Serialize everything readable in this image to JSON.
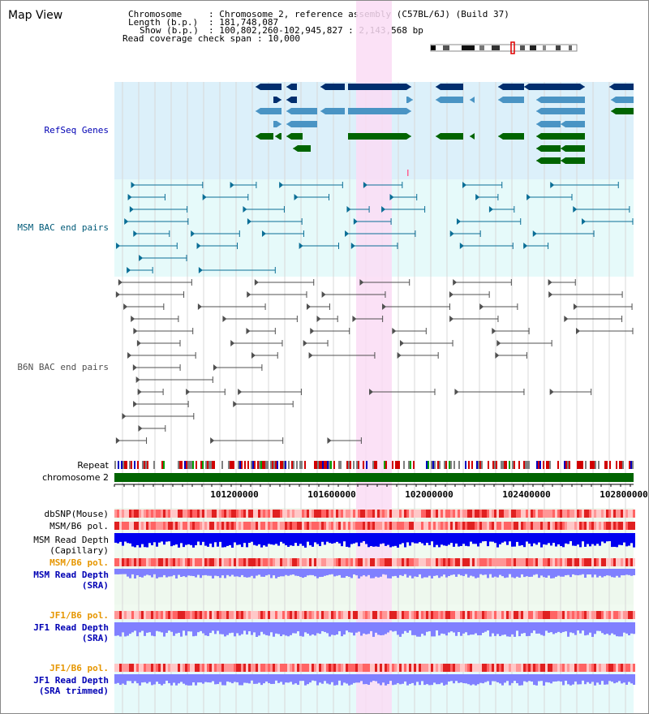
{
  "page": {
    "title": "Map View"
  },
  "info": {
    "chromosome_key": "Chromosome",
    "chromosome_val": ": Chromosome 2, reference assembly (C57BL/6J) (Build 37)",
    "length_key": "Length (b.p.)",
    "length_val": ": 181,748,087",
    "show_key": "Show (b.p.)",
    "show_val": ": 100,802,260-102,945,827 : 2,143,568 bp",
    "span_key": "Read coverage check span",
    "span_val": ": 10,000"
  },
  "tracks": {
    "refseq": "RefSeq Genes",
    "msm_bac": "MSM BAC end pairs",
    "b6n_bac": "B6N BAC end pairs",
    "repeat": "Repeat",
    "chromosome": "chromosome 2",
    "dbsnp": "dbSNP(Mouse)",
    "msm_b6_pol": "MSM/B6 pol.",
    "msm_depth_cap_1": "MSM Read Depth",
    "msm_depth_cap_2": "(Capillary)",
    "msm_b6_pol2": "MSM/B6 pol.",
    "msm_depth_sra_1": "MSM Read Depth",
    "msm_depth_sra_2": "(SRA)",
    "jf1_b6_pol": "JF1/B6 pol.",
    "jf1_depth_1": "JF1 Read Depth",
    "jf1_depth_2": "(SRA)",
    "jf1_b6_pol2": "JF1/B6 pol.",
    "jf1_trim_1": "JF1 Read Depth",
    "jf1_trim_2": "(SRA trimmed)"
  },
  "axis": {
    "ticks": [
      "101200000",
      "101600000",
      "102000000",
      "102400000",
      "102800000"
    ]
  },
  "colors": {
    "refseq_bg": "#dcf0fa",
    "msm_bg": "#e6fafa",
    "highlight": "#fadcf5",
    "refseq_dark": "#002e6e",
    "refseq_mid": "#4a94c4",
    "refseq_green": "#006400",
    "msm_pair": "#0a6e96",
    "b6n_pair": "#505050",
    "chromosome": "#006400",
    "label_blue": "#0000b4",
    "label_teal": "#005a78",
    "label_orange": "#e69600",
    "depth_dark": "#0000f0",
    "depth_light": "#8080ff",
    "pol_red": "#f03c3c"
  }
}
